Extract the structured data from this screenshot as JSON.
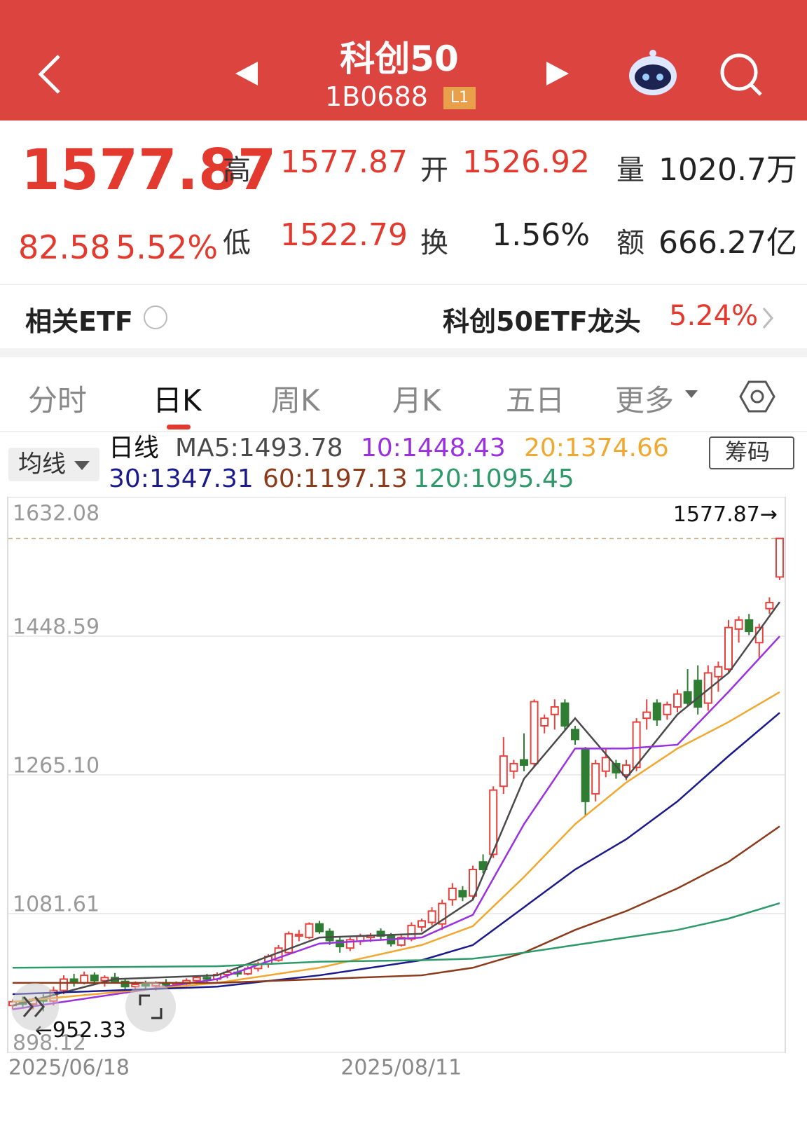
{
  "header": {
    "title": "科创50",
    "code": "1B0688",
    "badge": "L1"
  },
  "quote": {
    "price": "1577.87",
    "change": "82.58",
    "change_pct": "5.52%",
    "fields": [
      {
        "label": "高",
        "value": "1577.87",
        "color": "#e33a2f"
      },
      {
        "label": "开",
        "value": "1526.92",
        "color": "#e33a2f"
      },
      {
        "label": "量",
        "value": "1020.7万",
        "color": "#222"
      },
      {
        "label": "低",
        "value": "1522.79",
        "color": "#e33a2f"
      },
      {
        "label": "换",
        "value": "1.56%",
        "color": "#222"
      },
      {
        "label": "额",
        "value": "666.27亿",
        "color": "#222"
      }
    ]
  },
  "etf": {
    "label": "相关ETF",
    "name": "科创50ETF龙头",
    "change_pct": "5.24%"
  },
  "tabs": [
    "分时",
    "日K",
    "周K",
    "月K",
    "五日",
    "更多"
  ],
  "active_tab": 1,
  "chart_controls": {
    "ma_button": "均线",
    "chips_button": "筹码"
  },
  "chart_data": {
    "type": "candlestick",
    "period_label": "日线",
    "up_color": "#e8413c",
    "down_color": "#2e7d32",
    "ylim": [
      898.12,
      1632.08
    ],
    "yticks": [
      898.12,
      1081.61,
      {
        "value": 1265.1,
        "label": "1265.10"
      },
      1448.59,
      1632.08
    ],
    "grid": true,
    "high_label": {
      "value": 1577.87,
      "label": "1577.87→"
    },
    "low_label": {
      "value": 952.33,
      "label": "←952.33"
    },
    "categories": [
      "2025/06/18",
      null,
      null,
      null,
      null,
      null,
      null,
      null,
      null,
      null,
      null,
      null,
      null,
      null,
      null,
      null,
      null,
      null,
      null,
      null,
      null,
      null,
      null,
      null,
      null,
      null,
      null,
      null,
      null,
      null,
      null,
      null,
      null,
      null,
      null,
      null,
      null,
      null,
      "2025/08/11",
      null,
      null,
      null,
      null,
      null,
      null,
      null,
      null,
      null,
      null,
      null,
      null,
      null,
      null,
      null,
      null,
      null,
      null,
      null,
      null,
      null,
      null,
      null,
      null,
      null,
      null,
      null,
      null,
      null,
      null,
      null,
      null,
      null,
      null,
      null,
      null,
      null
    ],
    "open": [
      960,
      965,
      962,
      968,
      966,
      980,
      995,
      990,
      1000,
      993,
      997,
      992,
      985,
      988,
      986,
      990,
      987,
      989,
      993,
      997,
      995,
      1001,
      1004,
      1002,
      1009,
      1015,
      1020,
      1030,
      1052,
      1050,
      1068,
      1058,
      1046,
      1036,
      1045,
      1050,
      1058,
      1052,
      1040,
      1048,
      1064,
      1070,
      1068,
      1100,
      1112,
      1105,
      1150,
      1160,
      1250,
      1270,
      1285,
      1280,
      1330,
      1345,
      1360,
      1325,
      1300,
      1240,
      1270,
      1280,
      1265,
      1275,
      1340,
      1360,
      1345,
      1355,
      1375,
      1390,
      1360,
      1395,
      1405,
      1458,
      1470,
      1440,
      1485,
      1526.92
    ],
    "high": [
      968,
      972,
      970,
      975,
      985,
      1000,
      1002,
      1005,
      1004,
      1000,
      1003,
      996,
      992,
      993,
      992,
      995,
      992,
      996,
      1000,
      1002,
      1004,
      1008,
      1010,
      1012,
      1018,
      1028,
      1040,
      1058,
      1060,
      1070,
      1072,
      1062,
      1052,
      1050,
      1055,
      1056,
      1062,
      1056,
      1055,
      1070,
      1075,
      1090,
      1100,
      1122,
      1118,
      1145,
      1160,
      1250,
      1315,
      1285,
      1320,
      1365,
      1345,
      1365,
      1365,
      1330,
      1302,
      1285,
      1300,
      1285,
      1285,
      1340,
      1365,
      1365,
      1362,
      1378,
      1405,
      1410,
      1410,
      1415,
      1470,
      1475,
      1478,
      1465,
      1500,
      1577.87
    ],
    "low": [
      955,
      957,
      955,
      952.33,
      960,
      975,
      985,
      988,
      990,
      985,
      990,
      982,
      980,
      982,
      980,
      984,
      982,
      985,
      988,
      990,
      992,
      996,
      998,
      1000,
      1005,
      1010,
      1018,
      1028,
      1045,
      1048,
      1055,
      1040,
      1030,
      1032,
      1040,
      1044,
      1048,
      1038,
      1038,
      1045,
      1058,
      1066,
      1060,
      1092,
      1098,
      1100,
      1135,
      1155,
      1240,
      1260,
      1270,
      1275,
      1320,
      1325,
      1325,
      1305,
      1210,
      1230,
      1262,
      1260,
      1258,
      1270,
      1325,
      1330,
      1338,
      1348,
      1355,
      1345,
      1350,
      1375,
      1400,
      1440,
      1450,
      1420,
      1478,
      1522.79
    ],
    "close": [
      965,
      962,
      968,
      966,
      980,
      995,
      990,
      1000,
      993,
      997,
      992,
      985,
      988,
      986,
      990,
      987,
      989,
      993,
      997,
      995,
      1001,
      1004,
      1002,
      1009,
      1015,
      1025,
      1036,
      1055,
      1054,
      1068,
      1058,
      1046,
      1038,
      1047,
      1052,
      1053,
      1052,
      1042,
      1050,
      1066,
      1072,
      1085,
      1095,
      1115,
      1104,
      1140,
      1140,
      1245,
      1290,
      1280,
      1278,
      1362,
      1340,
      1355,
      1330,
      1312,
      1230,
      1280,
      1288,
      1268,
      1278,
      1335,
      1348,
      1338,
      1358,
      1372,
      1360,
      1355,
      1400,
      1408,
      1460,
      1470,
      1455,
      1460,
      1493,
      1577.87
    ],
    "series": [
      {
        "name": "MA5:1493.78",
        "color": "#4a4a4a",
        "x": [
          0,
          10,
          20,
          30,
          40,
          45,
          50,
          55,
          60,
          65,
          70,
          75
        ],
        "values": [
          960,
          995,
          1000,
          1050,
          1055,
          1100,
          1260,
          1340,
          1261,
          1345,
          1400,
          1493.78
        ]
      },
      {
        "name": "10:1448.43",
        "color": "#9b30e0",
        "x": [
          0,
          20,
          30,
          40,
          45,
          50,
          55,
          60,
          65,
          70,
          75
        ],
        "values": [
          955,
          995,
          1042,
          1050,
          1080,
          1200,
          1300,
          1300,
          1305,
          1375,
          1448.43
        ]
      },
      {
        "name": "20:1374.66",
        "color": "#f0a830",
        "x": [
          0,
          20,
          30,
          40,
          45,
          50,
          55,
          60,
          65,
          70,
          75
        ],
        "values": [
          965,
          990,
          1010,
          1040,
          1065,
          1130,
          1200,
          1255,
          1300,
          1335,
          1374.66
        ]
      },
      {
        "name": "30:1347.31",
        "color": "#1a1a8c",
        "x": [
          0,
          20,
          30,
          40,
          45,
          50,
          55,
          60,
          65,
          70,
          75
        ],
        "values": [
          975,
          985,
          1000,
          1020,
          1040,
          1090,
          1140,
          1180,
          1230,
          1290,
          1347.31
        ]
      },
      {
        "name": "60:1197.13",
        "color": "#8b3a1a",
        "x": [
          0,
          20,
          30,
          40,
          45,
          50,
          55,
          60,
          65,
          70,
          75
        ],
        "values": [
          990,
          990,
          995,
          1000,
          1010,
          1030,
          1060,
          1085,
          1115,
          1150,
          1197.13
        ]
      },
      {
        "name": "120:1095.45",
        "color": "#2e9a6a",
        "x": [
          0,
          20,
          30,
          40,
          45,
          50,
          55,
          60,
          65,
          70,
          75
        ],
        "values": [
          1010,
          1012,
          1018,
          1020,
          1022,
          1030,
          1040,
          1050,
          1060,
          1075,
          1095.45
        ]
      }
    ]
  }
}
